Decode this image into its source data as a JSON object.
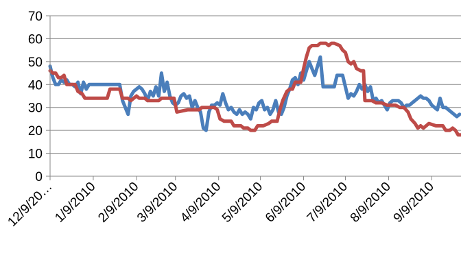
{
  "chart_data": {
    "type": "line",
    "title": "",
    "xlabel": "",
    "ylabel": "",
    "ylim": [
      0,
      70
    ],
    "yticks": [
      0,
      10,
      20,
      30,
      40,
      50,
      60,
      70
    ],
    "xlim": [
      "2009-12-09",
      "2010-09-30"
    ],
    "xtick_dates": [
      "2009-12-09",
      "2010-01-09",
      "2010-02-09",
      "2010-03-09",
      "2010-04-09",
      "2010-05-09",
      "2010-06-09",
      "2010-07-09",
      "2010-08-09",
      "2010-09-09"
    ],
    "xtick_labels": [
      "12/9/20…",
      "1/9/2010",
      "2/9/2010",
      "3/9/2010",
      "4/9/2010",
      "5/9/2010",
      "6/9/2010",
      "7/9/2010",
      "8/9/2010",
      "9/9/2010"
    ],
    "grid": "horizontal",
    "legend": "none",
    "series": [
      {
        "color": "#4a7ebb",
        "points": [
          [
            "2009-12-09",
            48
          ],
          [
            "2009-12-11",
            43
          ],
          [
            "2009-12-13",
            40
          ],
          [
            "2009-12-15",
            40
          ],
          [
            "2009-12-17",
            42
          ],
          [
            "2009-12-19",
            41
          ],
          [
            "2009-12-21",
            42
          ],
          [
            "2009-12-23",
            40
          ],
          [
            "2009-12-25",
            40
          ],
          [
            "2009-12-27",
            39
          ],
          [
            "2009-12-29",
            41
          ],
          [
            "2009-12-31",
            36
          ],
          [
            "2010-01-02",
            41
          ],
          [
            "2010-01-04",
            38
          ],
          [
            "2010-01-06",
            40
          ],
          [
            "2010-01-10",
            40
          ],
          [
            "2010-01-16",
            40
          ],
          [
            "2010-01-22",
            40
          ],
          [
            "2010-01-28",
            40
          ],
          [
            "2010-01-30",
            33
          ],
          [
            "2010-02-01",
            30
          ],
          [
            "2010-02-03",
            27
          ],
          [
            "2010-02-05",
            35
          ],
          [
            "2010-02-07",
            37
          ],
          [
            "2010-02-09",
            38
          ],
          [
            "2010-02-11",
            39
          ],
          [
            "2010-02-13",
            38
          ],
          [
            "2010-02-15",
            36
          ],
          [
            "2010-02-17",
            33
          ],
          [
            "2010-02-19",
            37
          ],
          [
            "2010-02-21",
            35
          ],
          [
            "2010-02-23",
            39
          ],
          [
            "2010-02-25",
            35
          ],
          [
            "2010-02-27",
            45
          ],
          [
            "2010-03-01",
            37
          ],
          [
            "2010-03-03",
            41
          ],
          [
            "2010-03-05",
            35
          ],
          [
            "2010-03-07",
            32
          ],
          [
            "2010-03-09",
            31
          ],
          [
            "2010-03-11",
            32
          ],
          [
            "2010-03-13",
            35
          ],
          [
            "2010-03-15",
            36
          ],
          [
            "2010-03-17",
            34
          ],
          [
            "2010-03-19",
            35
          ],
          [
            "2010-03-21",
            30
          ],
          [
            "2010-03-23",
            33
          ],
          [
            "2010-03-25",
            30
          ],
          [
            "2010-03-27",
            28
          ],
          [
            "2010-03-29",
            21
          ],
          [
            "2010-03-31",
            20
          ],
          [
            "2010-04-02",
            28
          ],
          [
            "2010-04-04",
            31
          ],
          [
            "2010-04-06",
            31
          ],
          [
            "2010-04-08",
            32
          ],
          [
            "2010-04-10",
            31
          ],
          [
            "2010-04-12",
            36
          ],
          [
            "2010-04-14",
            32
          ],
          [
            "2010-04-16",
            29
          ],
          [
            "2010-04-18",
            30
          ],
          [
            "2010-04-20",
            28
          ],
          [
            "2010-04-22",
            27
          ],
          [
            "2010-04-24",
            29
          ],
          [
            "2010-04-26",
            27
          ],
          [
            "2010-04-28",
            28
          ],
          [
            "2010-04-30",
            27
          ],
          [
            "2010-05-02",
            25
          ],
          [
            "2010-05-04",
            30
          ],
          [
            "2010-05-06",
            29
          ],
          [
            "2010-05-08",
            32
          ],
          [
            "2010-05-10",
            33
          ],
          [
            "2010-05-12",
            29
          ],
          [
            "2010-05-14",
            30
          ],
          [
            "2010-05-16",
            27
          ],
          [
            "2010-05-18",
            29
          ],
          [
            "2010-05-20",
            33
          ],
          [
            "2010-05-22",
            28
          ],
          [
            "2010-05-24",
            27
          ],
          [
            "2010-05-26",
            30
          ],
          [
            "2010-05-28",
            35
          ],
          [
            "2010-05-30",
            38
          ],
          [
            "2010-06-01",
            42
          ],
          [
            "2010-06-03",
            43
          ],
          [
            "2010-06-05",
            40
          ],
          [
            "2010-06-07",
            45
          ],
          [
            "2010-06-09",
            42
          ],
          [
            "2010-06-11",
            46
          ],
          [
            "2010-06-13",
            50
          ],
          [
            "2010-06-15",
            47
          ],
          [
            "2010-06-17",
            44
          ],
          [
            "2010-06-19",
            48
          ],
          [
            "2010-06-21",
            52
          ],
          [
            "2010-06-23",
            39
          ],
          [
            "2010-06-27",
            39
          ],
          [
            "2010-07-01",
            39
          ],
          [
            "2010-07-03",
            44
          ],
          [
            "2010-07-07",
            44
          ],
          [
            "2010-07-09",
            39
          ],
          [
            "2010-07-11",
            34
          ],
          [
            "2010-07-13",
            36
          ],
          [
            "2010-07-15",
            35
          ],
          [
            "2010-07-17",
            37
          ],
          [
            "2010-07-19",
            40
          ],
          [
            "2010-07-21",
            38
          ],
          [
            "2010-07-23",
            40
          ],
          [
            "2010-07-25",
            37
          ],
          [
            "2010-07-27",
            39
          ],
          [
            "2010-07-29",
            33
          ],
          [
            "2010-07-31",
            34
          ],
          [
            "2010-08-02",
            32
          ],
          [
            "2010-08-04",
            33
          ],
          [
            "2010-08-06",
            31
          ],
          [
            "2010-08-08",
            29
          ],
          [
            "2010-08-10",
            32
          ],
          [
            "2010-08-12",
            33
          ],
          [
            "2010-08-14",
            33
          ],
          [
            "2010-08-16",
            33
          ],
          [
            "2010-08-18",
            32
          ],
          [
            "2010-08-20",
            30
          ],
          [
            "2010-08-22",
            31
          ],
          [
            "2010-08-24",
            31
          ],
          [
            "2010-08-26",
            32
          ],
          [
            "2010-08-28",
            33
          ],
          [
            "2010-08-30",
            34
          ],
          [
            "2010-09-01",
            35
          ],
          [
            "2010-09-03",
            34
          ],
          [
            "2010-09-05",
            34
          ],
          [
            "2010-09-07",
            33
          ],
          [
            "2010-09-09",
            31
          ],
          [
            "2010-09-11",
            30
          ],
          [
            "2010-09-13",
            29
          ],
          [
            "2010-09-15",
            34
          ],
          [
            "2010-09-17",
            30
          ],
          [
            "2010-09-19",
            30
          ],
          [
            "2010-09-21",
            29
          ],
          [
            "2010-09-23",
            28
          ],
          [
            "2010-09-25",
            27
          ],
          [
            "2010-09-27",
            26
          ],
          [
            "2010-09-29",
            27
          ]
        ]
      },
      {
        "color": "#be4b48",
        "points": [
          [
            "2009-12-09",
            46
          ],
          [
            "2009-12-11",
            45
          ],
          [
            "2009-12-13",
            45
          ],
          [
            "2009-12-15",
            43
          ],
          [
            "2009-12-17",
            43
          ],
          [
            "2009-12-19",
            44
          ],
          [
            "2009-12-21",
            40
          ],
          [
            "2009-12-24",
            40
          ],
          [
            "2009-12-27",
            40
          ],
          [
            "2009-12-29",
            37
          ],
          [
            "2010-01-01",
            36
          ],
          [
            "2010-01-03",
            34
          ],
          [
            "2010-01-10",
            34
          ],
          [
            "2010-01-19",
            34
          ],
          [
            "2010-01-21",
            38
          ],
          [
            "2010-01-25",
            38
          ],
          [
            "2010-01-28",
            38
          ],
          [
            "2010-01-30",
            34
          ],
          [
            "2010-02-03",
            34
          ],
          [
            "2010-02-05",
            33
          ],
          [
            "2010-02-09",
            35
          ],
          [
            "2010-02-11",
            34
          ],
          [
            "2010-02-15",
            34
          ],
          [
            "2010-02-17",
            33
          ],
          [
            "2010-02-25",
            33
          ],
          [
            "2010-02-27",
            34
          ],
          [
            "2010-03-02",
            34
          ],
          [
            "2010-03-06",
            34
          ],
          [
            "2010-03-08",
            34
          ],
          [
            "2010-03-10",
            28
          ],
          [
            "2010-03-18",
            29
          ],
          [
            "2010-03-26",
            29
          ],
          [
            "2010-03-28",
            30
          ],
          [
            "2010-04-06",
            30
          ],
          [
            "2010-04-08",
            29
          ],
          [
            "2010-04-10",
            25
          ],
          [
            "2010-04-13",
            24
          ],
          [
            "2010-04-18",
            24
          ],
          [
            "2010-04-20",
            22
          ],
          [
            "2010-04-25",
            22
          ],
          [
            "2010-04-27",
            21
          ],
          [
            "2010-04-30",
            21
          ],
          [
            "2010-05-02",
            20
          ],
          [
            "2010-05-05",
            20
          ],
          [
            "2010-05-07",
            22
          ],
          [
            "2010-05-11",
            22
          ],
          [
            "2010-05-15",
            23
          ],
          [
            "2010-05-17",
            24
          ],
          [
            "2010-05-21",
            24
          ],
          [
            "2010-05-23",
            29
          ],
          [
            "2010-05-25",
            33
          ],
          [
            "2010-05-28",
            37
          ],
          [
            "2010-05-30",
            38
          ],
          [
            "2010-06-01",
            38
          ],
          [
            "2010-06-03",
            41
          ],
          [
            "2010-06-07",
            41
          ],
          [
            "2010-06-09",
            47
          ],
          [
            "2010-06-11",
            52
          ],
          [
            "2010-06-13",
            56
          ],
          [
            "2010-06-15",
            57
          ],
          [
            "2010-06-19",
            57
          ],
          [
            "2010-06-21",
            58
          ],
          [
            "2010-06-25",
            58
          ],
          [
            "2010-06-27",
            57
          ],
          [
            "2010-06-29",
            58
          ],
          [
            "2010-07-01",
            58
          ],
          [
            "2010-07-05",
            57
          ],
          [
            "2010-07-07",
            55
          ],
          [
            "2010-07-09",
            54
          ],
          [
            "2010-07-11",
            50
          ],
          [
            "2010-07-13",
            49
          ],
          [
            "2010-07-15",
            50
          ],
          [
            "2010-07-17",
            47
          ],
          [
            "2010-07-20",
            46
          ],
          [
            "2010-07-22",
            46
          ],
          [
            "2010-07-23",
            33
          ],
          [
            "2010-07-28",
            33
          ],
          [
            "2010-07-31",
            32
          ],
          [
            "2010-08-04",
            32
          ],
          [
            "2010-08-08",
            31
          ],
          [
            "2010-08-14",
            31
          ],
          [
            "2010-08-17",
            30
          ],
          [
            "2010-08-20",
            30
          ],
          [
            "2010-08-23",
            28
          ],
          [
            "2010-08-25",
            25
          ],
          [
            "2010-08-28",
            23
          ],
          [
            "2010-08-30",
            21
          ],
          [
            "2010-09-01",
            22
          ],
          [
            "2010-09-03",
            21
          ],
          [
            "2010-09-05",
            22
          ],
          [
            "2010-09-07",
            23
          ],
          [
            "2010-09-12",
            22
          ],
          [
            "2010-09-17",
            22
          ],
          [
            "2010-09-19",
            20
          ],
          [
            "2010-09-22",
            20
          ],
          [
            "2010-09-24",
            21
          ],
          [
            "2010-09-26",
            20
          ],
          [
            "2010-09-28",
            18
          ],
          [
            "2010-09-30",
            18
          ]
        ]
      }
    ]
  }
}
